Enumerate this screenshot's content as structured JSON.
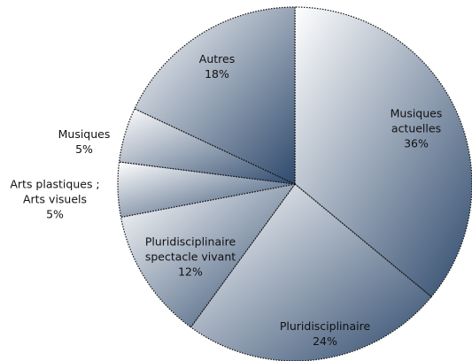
{
  "chart_data": {
    "type": "pie",
    "categories": [
      "Musiques actuelles",
      "Pluridisciplinaire",
      "Pluridisciplinaire spectacle vivant",
      "Arts plastiques ; Arts visuels",
      "Musiques",
      "Autres"
    ],
    "values": [
      36,
      24,
      12,
      5,
      5,
      18
    ],
    "value_labels": [
      "36%",
      "24%",
      "12%",
      "5%",
      "5%",
      "18%"
    ],
    "gradient": [
      "#ffffff",
      "#2f4a6d"
    ]
  }
}
